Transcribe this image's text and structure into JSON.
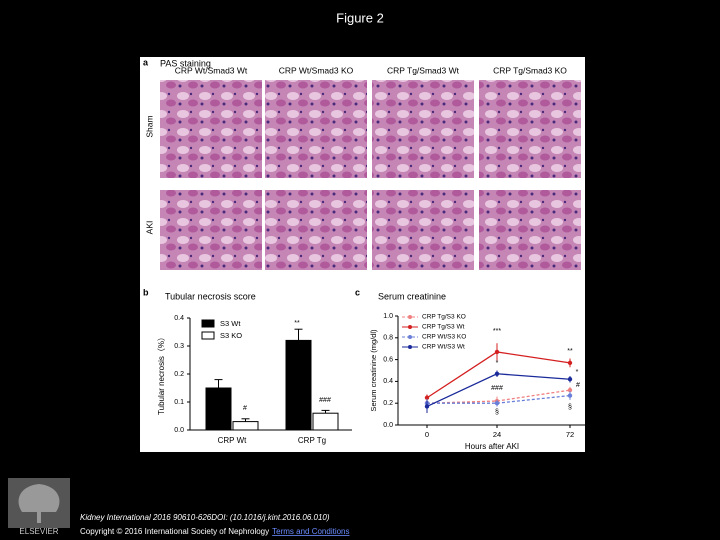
{
  "title": "Figure 2",
  "panel_a": {
    "label": "a",
    "title": "PAS staining",
    "columns": [
      "CRP Wt/Smad3 Wt",
      "CRP Wt/Smad3 KO",
      "CRP Tg/Smad3 Wt",
      "CRP Tg/Smad3 KO"
    ],
    "rows": [
      "Sham",
      "AKI"
    ]
  },
  "chart_data": [
    {
      "type": "bar",
      "panel": "b",
      "title": "Tubular necrosis score",
      "y_label": "Tubular necrosis（%）",
      "categories": [
        "CRP Wt",
        "CRP Tg"
      ],
      "series": [
        {
          "name": "S3 Wt",
          "color": "#000000",
          "values": [
            0.15,
            0.32
          ],
          "errors": [
            0.03,
            0.04
          ]
        },
        {
          "name": "S3 KO",
          "color": "#ffffff",
          "values": [
            0.03,
            0.06
          ],
          "errors": [
            0.01,
            0.01
          ]
        }
      ],
      "ylim": [
        0,
        0.4
      ],
      "yticks": [
        {
          "value": 0,
          "label": "0.0"
        },
        0.1,
        0.2,
        0.3,
        0.4
      ],
      "annotations": [
        "#",
        "**",
        "###"
      ]
    },
    {
      "type": "line",
      "panel": "c",
      "title": "Serum creatinine",
      "y_label": "Serum creatinine (mg/dl)",
      "x_label": "Hours after AKI",
      "categories": [
        "0",
        "24",
        "72"
      ],
      "series": [
        {
          "name": "CRP Tg/S3 KO",
          "color": "#f08080",
          "dashed": true,
          "values": [
            0.2,
            0.22,
            0.32
          ],
          "errors": [
            0.03,
            0.04,
            0.03
          ]
        },
        {
          "name": "CRP Tg/S3 Wt",
          "color": "#d42020",
          "dashed": false,
          "values": [
            0.25,
            0.67,
            0.57
          ],
          "errors": [
            0.03,
            0.08,
            0.04
          ]
        },
        {
          "name": "CRP Wt/S3 KO",
          "color": "#6a7fd8",
          "dashed": true,
          "values": [
            0.2,
            0.2,
            0.27
          ],
          "errors": [
            0.04,
            0.03,
            0.04
          ]
        },
        {
          "name": "CRP Wt/S3 Wt",
          "color": "#1a2a9a",
          "dashed": false,
          "values": [
            0.17,
            0.47,
            0.42
          ],
          "errors": [
            0.06,
            0.03,
            0.03
          ]
        }
      ],
      "ylim": [
        0,
        1.0
      ],
      "yticks": [
        {
          "value": 0,
          "label": "0.0"
        },
        {
          "value": 0.2,
          "label": "0.2"
        },
        {
          "value": 0.4,
          "label": "0.4"
        },
        {
          "value": 0.6,
          "label": "0.6"
        },
        {
          "value": 0.8,
          "label": "0.8"
        },
        {
          "value": 1.0,
          "label": "1.0"
        }
      ],
      "annotations": [
        "***",
        "*",
        "###",
        "**",
        "*",
        "#",
        "§",
        "§"
      ]
    }
  ],
  "footer": {
    "citation": "Kidney International 2016 90610-626DOI: (10.1016/j.kint.2016.06.010)",
    "copyright": "Copyright © 2016 International Society of Nephrology",
    "link": "Terms and Conditions"
  },
  "logo": "ELSEVIER"
}
